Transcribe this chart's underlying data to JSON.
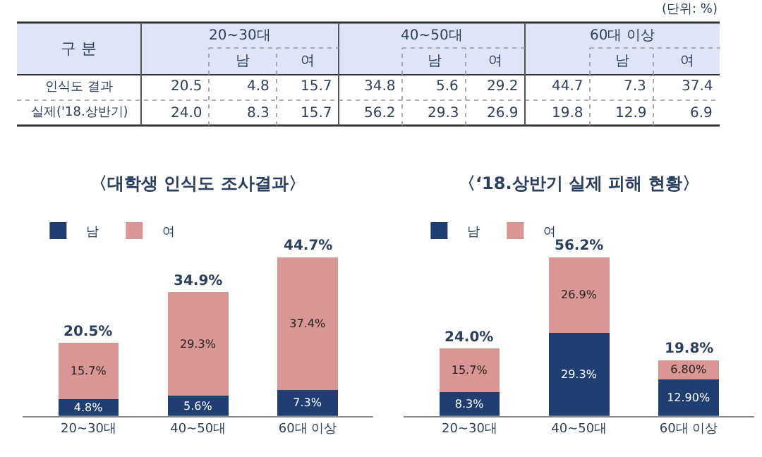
{
  "chart_data": [
    {
      "type": "other",
      "annotations": [
        "(단위: %)"
      ],
      "ylabel": "구 분",
      "categories": [
        "20~30대",
        "남",
        "여",
        "40~50대",
        "남",
        "여",
        "60대 이상",
        "남",
        "여"
      ],
      "y_categories": [
        "인식도 결과",
        "실제('18.상반기)"
      ],
      "cell_labels": [
        [
          "20.5",
          "4.8",
          "15.7",
          "34.8",
          "5.6",
          "29.2",
          "44.7",
          "7.3",
          "37.4"
        ],
        [
          "24.0",
          "8.3",
          "15.7",
          "56.2",
          "29.3",
          "26.9",
          "19.8",
          "12.9",
          "6.9"
        ]
      ]
    },
    {
      "type": "bar",
      "stacked": true,
      "title": "〈대학생 인식도 조사결과〉",
      "categories": [
        "20~30대",
        "40~50대",
        "60대 이상"
      ],
      "legend": "top left",
      "tick_labels": "x",
      "series": [
        {
          "name": "남",
          "color": "#1f3f73",
          "values": [
            4.8,
            5.6,
            7.3
          ],
          "value_labels": [
            "4.8%",
            "5.6%",
            "7.3%"
          ]
        },
        {
          "name": "여",
          "color": "#d99694",
          "values": [
            15.7,
            29.3,
            37.4
          ],
          "value_labels": [
            "15.7%",
            "29.3%",
            "37.4%"
          ]
        }
      ],
      "totals": [
        "20.5%",
        "34.9%",
        "44.7%"
      ]
    },
    {
      "type": "bar",
      "stacked": true,
      "title": "〈‘18.상반기 실제 피해 현황〉",
      "categories": [
        "20~30대",
        "40~50대",
        "60대 이상"
      ],
      "legend": "top left",
      "tick_labels": "x",
      "series": [
        {
          "name": "남",
          "color": "#1f3f73",
          "values": [
            8.3,
            29.3,
            12.9
          ],
          "value_labels": [
            "8.3%",
            "29.3%",
            "12.90%"
          ]
        },
        {
          "name": "여",
          "color": "#d99694",
          "values": [
            15.7,
            26.9,
            6.8
          ],
          "value_labels": [
            "15.7%",
            "26.9%",
            "6.80%"
          ]
        }
      ],
      "totals": [
        "24.0%",
        "56.2%",
        "19.8%"
      ]
    }
  ]
}
